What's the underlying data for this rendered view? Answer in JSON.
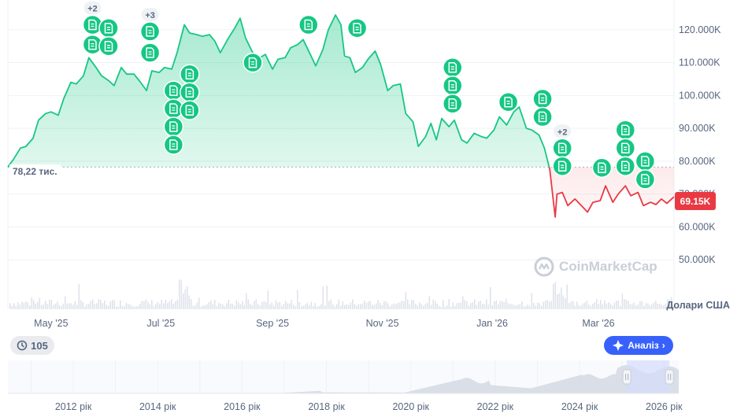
{
  "chart_data": {
    "type": "area",
    "title": "",
    "currency_label": "Долари США",
    "start_label": "78,22 тис.",
    "start_value": 78220,
    "current_price_label": "69.15K",
    "current_value": 69150,
    "y_ticks": [
      "120.000K",
      "110.000K",
      "100.000K",
      "90.000K",
      "80.000K",
      "70.000K",
      "60.000K",
      "50.000K"
    ],
    "y_tick_values": [
      120000,
      110000,
      100000,
      90000,
      80000,
      70000,
      60000,
      50000
    ],
    "ylim": [
      40000,
      130000
    ],
    "x_ticks": [
      "May '25",
      "Jul '25",
      "Sep '25",
      "Nov '25",
      "Jan '26",
      "Mar '26"
    ],
    "x_tick_dates": [
      "2025-05-01",
      "2025-07-01",
      "2025-09-01",
      "2025-11-01",
      "2026-01-01",
      "2026-03-01"
    ],
    "xlim": [
      "2025-04-07",
      "2026-04-12"
    ],
    "series": [
      {
        "values": [
          [
            "2025-04-07",
            78220
          ],
          [
            "2025-04-10",
            80500
          ],
          [
            "2025-04-14",
            84000
          ],
          [
            "2025-04-17",
            84500
          ],
          [
            "2025-04-21",
            87000
          ],
          [
            "2025-04-24",
            92500
          ],
          [
            "2025-04-28",
            94500
          ],
          [
            "2025-05-01",
            95000
          ],
          [
            "2025-05-05",
            94000
          ],
          [
            "2025-05-08",
            99000
          ],
          [
            "2025-05-12",
            104000
          ],
          [
            "2025-05-15",
            103500
          ],
          [
            "2025-05-19",
            106000
          ],
          [
            "2025-05-22",
            111500
          ],
          [
            "2025-05-26",
            108500
          ],
          [
            "2025-05-29",
            106000
          ],
          [
            "2025-06-02",
            104500
          ],
          [
            "2025-06-05",
            103000
          ],
          [
            "2025-06-09",
            108500
          ],
          [
            "2025-06-12",
            106500
          ],
          [
            "2025-06-16",
            106500
          ],
          [
            "2025-06-19",
            104500
          ],
          [
            "2025-06-23",
            101500
          ],
          [
            "2025-06-26",
            107500
          ],
          [
            "2025-06-30",
            107000
          ],
          [
            "2025-07-03",
            108500
          ],
          [
            "2025-07-07",
            108000
          ],
          [
            "2025-07-10",
            113000
          ],
          [
            "2025-07-14",
            121500
          ],
          [
            "2025-07-17",
            119000
          ],
          [
            "2025-07-21",
            118500
          ],
          [
            "2025-07-24",
            118000
          ],
          [
            "2025-07-28",
            118500
          ],
          [
            "2025-07-31",
            116500
          ],
          [
            "2025-08-03",
            113000
          ],
          [
            "2025-08-07",
            117000
          ],
          [
            "2025-08-11",
            120500
          ],
          [
            "2025-08-14",
            123500
          ],
          [
            "2025-08-17",
            117500
          ],
          [
            "2025-08-21",
            113000
          ],
          [
            "2025-08-25",
            111500
          ],
          [
            "2025-08-28",
            112500
          ],
          [
            "2025-09-01",
            108000
          ],
          [
            "2025-09-04",
            111000
          ],
          [
            "2025-09-08",
            111500
          ],
          [
            "2025-09-11",
            114500
          ],
          [
            "2025-09-15",
            115500
          ],
          [
            "2025-09-18",
            117000
          ],
          [
            "2025-09-22",
            112500
          ],
          [
            "2025-09-25",
            109000
          ],
          [
            "2025-09-29",
            114000
          ],
          [
            "2025-10-02",
            120000
          ],
          [
            "2025-10-06",
            124500
          ],
          [
            "2025-10-09",
            121500
          ],
          [
            "2025-10-11",
            112000
          ],
          [
            "2025-10-14",
            111500
          ],
          [
            "2025-10-17",
            107000
          ],
          [
            "2025-10-21",
            108500
          ],
          [
            "2025-10-24",
            111000
          ],
          [
            "2025-10-28",
            113500
          ],
          [
            "2025-10-31",
            109500
          ],
          [
            "2025-11-04",
            101500
          ],
          [
            "2025-11-07",
            103000
          ],
          [
            "2025-11-11",
            103500
          ],
          [
            "2025-11-14",
            94500
          ],
          [
            "2025-11-18",
            92000
          ],
          [
            "2025-11-21",
            84500
          ],
          [
            "2025-11-25",
            87500
          ],
          [
            "2025-11-28",
            91500
          ],
          [
            "2025-12-01",
            86500
          ],
          [
            "2025-12-04",
            93000
          ],
          [
            "2025-12-08",
            90500
          ],
          [
            "2025-12-11",
            92500
          ],
          [
            "2025-12-15",
            86500
          ],
          [
            "2025-12-18",
            85500
          ],
          [
            "2025-12-22",
            88500
          ],
          [
            "2025-12-26",
            87500
          ],
          [
            "2025-12-29",
            87000
          ],
          [
            "2026-01-02",
            89500
          ],
          [
            "2026-01-05",
            93500
          ],
          [
            "2026-01-09",
            91000
          ],
          [
            "2026-01-13",
            95000
          ],
          [
            "2026-01-16",
            96500
          ],
          [
            "2026-01-20",
            90000
          ],
          [
            "2026-01-23",
            89500
          ],
          [
            "2026-01-27",
            88000
          ],
          [
            "2026-01-30",
            84000
          ],
          [
            "2026-02-02",
            77500
          ],
          [
            "2026-02-05",
            63000
          ],
          [
            "2026-02-06",
            70000
          ],
          [
            "2026-02-09",
            70500
          ],
          [
            "2026-02-12",
            66500
          ],
          [
            "2026-02-16",
            68500
          ],
          [
            "2026-02-19",
            66800
          ],
          [
            "2026-02-23",
            64500
          ],
          [
            "2026-02-26",
            67500
          ],
          [
            "2026-03-02",
            68000
          ],
          [
            "2026-03-05",
            72500
          ],
          [
            "2026-03-09",
            67500
          ],
          [
            "2026-03-12",
            70000
          ],
          [
            "2026-03-16",
            72500
          ],
          [
            "2026-03-19",
            69500
          ],
          [
            "2026-03-23",
            70500
          ],
          [
            "2026-03-26",
            66500
          ],
          [
            "2026-03-30",
            67500
          ],
          [
            "2026-04-02",
            66800
          ],
          [
            "2026-04-05",
            68500
          ],
          [
            "2026-04-08",
            67200
          ],
          [
            "2026-04-12",
            69150
          ]
        ]
      }
    ],
    "news_markers": [
      {
        "date": "2025-05-24",
        "value": 121500
      },
      {
        "date": "2025-05-24",
        "value": 115500
      },
      {
        "date": "2025-06-02",
        "value": 120500
      },
      {
        "date": "2025-06-02",
        "value": 115000
      },
      {
        "date": "2025-06-25",
        "value": 119500
      },
      {
        "date": "2025-06-25",
        "value": 113000
      },
      {
        "date": "2025-07-08",
        "value": 101500
      },
      {
        "date": "2025-07-08",
        "value": 96000
      },
      {
        "date": "2025-07-08",
        "value": 90500
      },
      {
        "date": "2025-07-08",
        "value": 85000
      },
      {
        "date": "2025-07-17",
        "value": 106500
      },
      {
        "date": "2025-07-17",
        "value": 101000
      },
      {
        "date": "2025-07-17",
        "value": 95500
      },
      {
        "date": "2025-08-21",
        "value": 110000
      },
      {
        "date": "2025-09-21",
        "value": 121500
      },
      {
        "date": "2025-10-18",
        "value": 120500
      },
      {
        "date": "2025-12-10",
        "value": 108500
      },
      {
        "date": "2025-12-10",
        "value": 103000
      },
      {
        "date": "2025-12-10",
        "value": 97500
      },
      {
        "date": "2026-01-10",
        "value": 98000
      },
      {
        "date": "2026-01-29",
        "value": 99000
      },
      {
        "date": "2026-01-29",
        "value": 93500
      },
      {
        "date": "2026-02-09",
        "value": 84000
      },
      {
        "date": "2026-02-09",
        "value": 78500
      },
      {
        "date": "2026-03-03",
        "value": 78000
      },
      {
        "date": "2026-03-16",
        "value": 89500
      },
      {
        "date": "2026-03-16",
        "value": 84000
      },
      {
        "date": "2026-03-16",
        "value": 78500
      },
      {
        "date": "2026-03-27",
        "value": 80000
      },
      {
        "date": "2026-03-27",
        "value": 74500
      }
    ],
    "cluster_badges": [
      {
        "label": "+2",
        "date": "2025-05-24",
        "value": 126500
      },
      {
        "label": "+3",
        "date": "2025-06-25",
        "value": 124500
      },
      {
        "label": "+2",
        "date": "2026-02-09",
        "value": 89000
      }
    ],
    "volume_hint": "volume bars along the bottom of the main chart",
    "navigator": {
      "x_ticks": [
        "2012 рік",
        "2014 рік",
        "2016 рік",
        "2018 рік",
        "2020 рік",
        "2022 рік",
        "2024 рік",
        "2026 рік"
      ],
      "x_tick_years": [
        2012,
        2014,
        2016,
        2018,
        2020,
        2022,
        2024,
        2026
      ],
      "xlim": [
        2010.6,
        2026.5
      ],
      "selected_range": [
        2025.27,
        2026.28
      ]
    },
    "colors": {
      "up_line": "#16c784",
      "up_fill_top": "#16c784",
      "down_line": "#ea3943",
      "down_fill": "#ea3943",
      "axis_text": "#58667e",
      "grid": "#eff2f5",
      "accent": "#3861fb",
      "nav_fill": "#c7cdd8",
      "nav_selection": "#d4dcfb"
    }
  },
  "ui": {
    "history_count": "105",
    "history_icon": "history-icon",
    "analysis_label": "Аналіз",
    "analysis_icon": "analysis-icon",
    "brand_name": "CoinMarketCap",
    "brand_icon": "coinmarketcap-logo-icon"
  }
}
